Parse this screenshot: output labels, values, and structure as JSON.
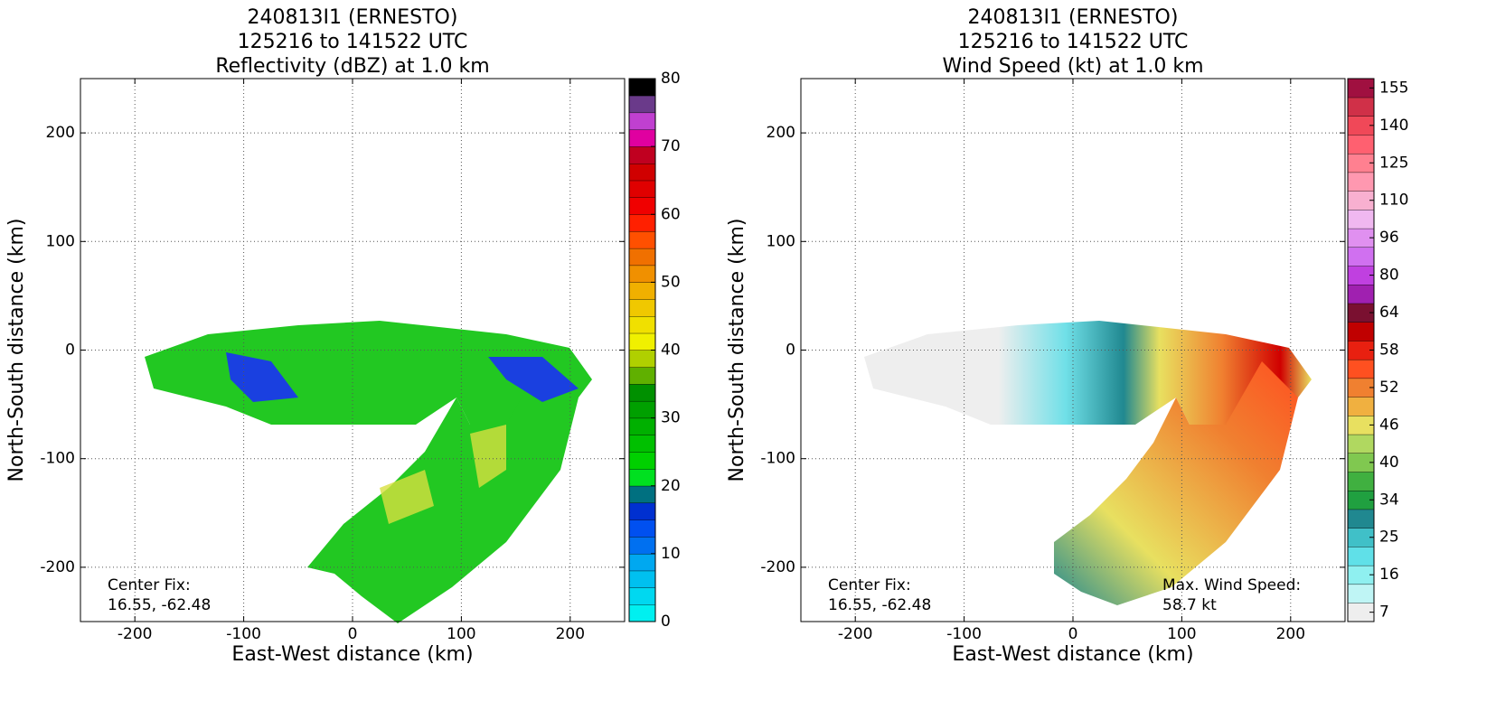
{
  "chart_data": [
    {
      "type": "field",
      "title": [
        "240813I1 (ERNESTO)",
        "125216 to 141522 UTC",
        "Reflectivity (dBZ) at 1.0 km"
      ],
      "xlabel": "East-West distance (km)",
      "ylabel": "North-South distance (km)",
      "xlim": [
        -250,
        250
      ],
      "ylim": [
        -250,
        250
      ],
      "xticks": [
        -200,
        -100,
        0,
        100,
        200
      ],
      "yticks": [
        -200,
        -100,
        0,
        100,
        200
      ],
      "grid": true,
      "annotations": [
        {
          "corner": "lower left",
          "text": [
            "Center Fix:",
            "16.55, -62.48"
          ]
        }
      ],
      "colorbar": {
        "lim": [
          0,
          80
        ],
        "ticks": [
          0,
          10,
          20,
          30,
          40,
          50,
          60,
          70,
          80
        ],
        "colors": [
          "#00f0f0",
          "#00d8f0",
          "#00c0f0",
          "#00a8f0",
          "#0070f0",
          "#0050f0",
          "#0030d0",
          "#007080",
          "#00e020",
          "#00d000",
          "#00c000",
          "#00b000",
          "#00a000",
          "#009000",
          "#60b000",
          "#b0d000",
          "#f0f000",
          "#f0e000",
          "#f0c800",
          "#f0b000",
          "#f09000",
          "#f07000",
          "#ff5000",
          "#ff2000",
          "#f00000",
          "#e00000",
          "#d00000",
          "#c00020",
          "#e000a0",
          "#c040d0",
          "#6a3a8a",
          "#000000"
        ]
      }
    },
    {
      "type": "field",
      "title": [
        "240813I1 (ERNESTO)",
        "125216 to 141522 UTC",
        "Wind Speed (kt) at 1.0 km"
      ],
      "xlabel": "East-West distance (km)",
      "ylabel": "North-South distance (km)",
      "xlim": [
        -250,
        250
      ],
      "ylim": [
        -250,
        250
      ],
      "xticks": [
        -200,
        -100,
        0,
        100,
        200
      ],
      "yticks": [
        -200,
        -100,
        0,
        100,
        200
      ],
      "grid": true,
      "annotations": [
        {
          "corner": "lower left",
          "text": [
            "Center Fix:",
            "16.55, -62.48"
          ]
        },
        {
          "corner": "lower right",
          "text": [
            "Max. Wind Speed:",
            "58.7 kt"
          ]
        }
      ],
      "colorbar": {
        "levels": [
          7,
          11.5,
          16,
          20.5,
          25,
          29.5,
          34,
          37,
          40,
          43,
          46,
          49,
          52,
          55,
          58,
          61,
          64,
          72,
          80,
          88,
          96,
          103,
          110,
          117.5,
          125,
          132.5,
          140,
          147.5,
          155
        ],
        "ticks": [
          7,
          16,
          25,
          34,
          40,
          46,
          52,
          58,
          64,
          80,
          96,
          110,
          125,
          140,
          155
        ],
        "colors": [
          "#eeeeee",
          "#bff5f5",
          "#8ff0f0",
          "#60e0e8",
          "#40c0c8",
          "#208890",
          "#20a040",
          "#40b040",
          "#80c850",
          "#b0d860",
          "#e8e060",
          "#f0b040",
          "#f08030",
          "#ff5020",
          "#e82010",
          "#c00000",
          "#7a1030",
          "#a020b0",
          "#c040e0",
          "#d070f0",
          "#e090f0",
          "#f0b8f0",
          "#f8b0d0",
          "#ff98b0",
          "#ff8090",
          "#ff6070",
          "#f04858",
          "#d03048",
          "#a01040"
        ]
      }
    }
  ]
}
